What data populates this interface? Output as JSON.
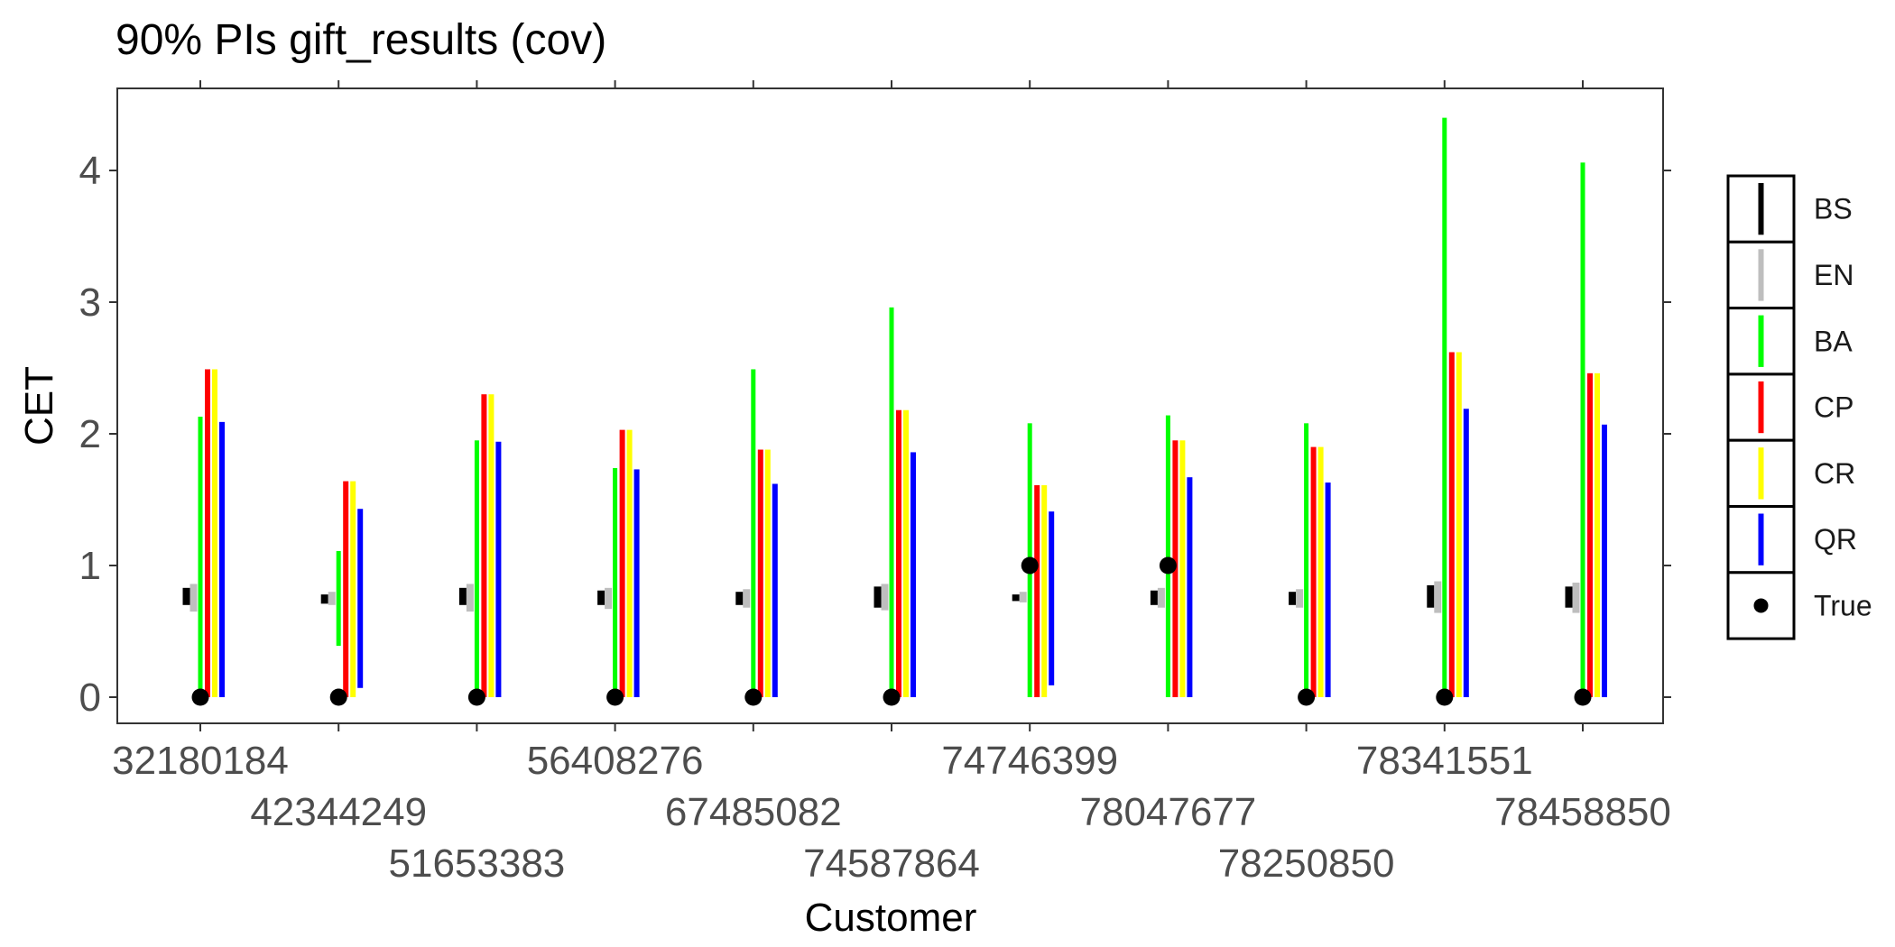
{
  "chart_data": {
    "type": "errorbar",
    "title": "90% PIs gift_results (cov)",
    "xlabel": "Customer",
    "ylabel": "CET",
    "ylim": [
      -0.2,
      4.6
    ],
    "yticks": [
      0,
      1,
      2,
      3,
      4
    ],
    "grid": false,
    "legend_position": "right",
    "categories": [
      "32180184",
      "42344249",
      "51653383",
      "56408276",
      "67485082",
      "74587864",
      "74746399",
      "78047677",
      "78250850",
      "78341551",
      "78458850"
    ],
    "series": [
      {
        "name": "BS",
        "color": "#000000",
        "lower": [
          0.7,
          0.71,
          0.7,
          0.7,
          0.7,
          0.68,
          0.73,
          0.7,
          0.7,
          0.68,
          0.68
        ],
        "upper": [
          0.83,
          0.78,
          0.83,
          0.81,
          0.8,
          0.84,
          0.78,
          0.81,
          0.8,
          0.85,
          0.84
        ]
      },
      {
        "name": "EN",
        "color": "#bebebe",
        "lower": [
          0.65,
          0.7,
          0.65,
          0.67,
          0.68,
          0.66,
          0.72,
          0.68,
          0.68,
          0.64,
          0.64
        ],
        "upper": [
          0.86,
          0.8,
          0.86,
          0.83,
          0.82,
          0.86,
          0.8,
          0.83,
          0.82,
          0.88,
          0.87
        ]
      },
      {
        "name": "BA",
        "color": "#00ff00",
        "lower": [
          0.0,
          0.39,
          0.0,
          0.0,
          0.0,
          0.0,
          0.0,
          0.0,
          0.0,
          0.0,
          0.0
        ],
        "upper": [
          2.13,
          1.11,
          1.95,
          1.74,
          2.49,
          2.96,
          2.08,
          2.14,
          2.08,
          4.4,
          4.06
        ]
      },
      {
        "name": "CP",
        "color": "#ff0000",
        "lower": [
          0.0,
          0.0,
          0.0,
          0.0,
          0.0,
          0.0,
          0.0,
          0.0,
          0.0,
          0.0,
          0.0
        ],
        "upper": [
          2.49,
          1.64,
          2.3,
          2.03,
          1.88,
          2.18,
          1.61,
          1.95,
          1.9,
          2.62,
          2.46
        ]
      },
      {
        "name": "CR",
        "color": "#ffff00",
        "lower": [
          0.0,
          0.0,
          0.0,
          0.0,
          0.0,
          0.0,
          0.0,
          0.0,
          0.0,
          0.0,
          0.0
        ],
        "upper": [
          2.49,
          1.64,
          2.3,
          2.03,
          1.88,
          2.18,
          1.61,
          1.95,
          1.9,
          2.62,
          2.46
        ]
      },
      {
        "name": "QR",
        "color": "#0000ff",
        "lower": [
          0.0,
          0.07,
          0.0,
          0.0,
          0.0,
          0.0,
          0.09,
          0.0,
          0.0,
          0.0,
          0.0
        ],
        "upper": [
          2.09,
          1.43,
          1.94,
          1.73,
          1.62,
          1.86,
          1.41,
          1.67,
          1.63,
          2.19,
          2.07
        ]
      },
      {
        "name": "True",
        "color": "#000000",
        "values": [
          0,
          0,
          0,
          0,
          0,
          0,
          1,
          1,
          0,
          0,
          0
        ]
      }
    ]
  }
}
